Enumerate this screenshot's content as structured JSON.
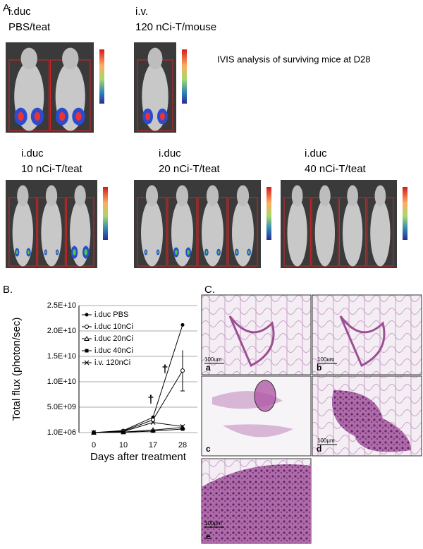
{
  "panel_a": {
    "label": "A.",
    "groups": [
      {
        "line1": "i.duc",
        "line2": "PBS/teat"
      },
      {
        "line1": "i.v.",
        "line2": "120 nCi-T/mouse"
      },
      {
        "line1": "i.duc",
        "line2": "10 nCi-T/teat"
      },
      {
        "line1": "i.duc",
        "line2": "20 nCi-T/teat"
      },
      {
        "line1": "i.duc",
        "line2": "40 nCi-T/teat"
      }
    ],
    "note": "IVIS analysis of surviving mice at D28"
  },
  "panel_b": {
    "label": "B."
  },
  "chart_data": {
    "type": "line",
    "x_label": "Days after treatment",
    "y_label": "Total flux (photon/sec)",
    "categories": [
      "0",
      "10",
      "17",
      "28"
    ],
    "ylim": [
      1000000,
      25000000000
    ],
    "yticks": [
      {
        "value": 1000000,
        "label": "1.0E+06"
      },
      {
        "value": 5000000000,
        "label": "5.0E+09"
      },
      {
        "value": 10000000000,
        "label": "1.0E+10"
      },
      {
        "value": 15000000000,
        "label": "1.5E+10"
      },
      {
        "value": 20000000000,
        "label": "2.0E+10"
      },
      {
        "value": 25000000000,
        "label": "2.5E+10"
      }
    ],
    "grid": true,
    "series": [
      {
        "name": "i.duc PBS",
        "color": "#000000",
        "marker": "filled-circle",
        "values": [
          1000000,
          400000000,
          3000000000,
          21200000000
        ]
      },
      {
        "name": "i.duc 10nCi",
        "color": "#000000",
        "marker": "open-circle",
        "values": [
          1000000,
          300000000,
          2500000000,
          12200000000
        ],
        "errors": [
          null,
          null,
          null,
          4000000000
        ]
      },
      {
        "name": "i.duc 20nCi",
        "color": "#000000",
        "marker": "triangle",
        "values": [
          1000000,
          100000000,
          500000000,
          1000000000
        ]
      },
      {
        "name": "i.duc 40nCi",
        "color": "#000000",
        "marker": "filled-square",
        "values": [
          1000000,
          50000000,
          300000000,
          700000000
        ]
      },
      {
        "name": "i.v. 120nCi",
        "color": "#000000",
        "marker": "cross",
        "values": [
          1000000,
          200000000,
          2000000000,
          1200000000
        ]
      }
    ],
    "annotations": [
      "†",
      "†"
    ]
  },
  "panel_c": {
    "label": "C.",
    "subpanels": [
      "a",
      "b",
      "c",
      "d",
      "e"
    ],
    "scale_bars": [
      "100um",
      "100um",
      "100µm",
      "100µm"
    ]
  }
}
